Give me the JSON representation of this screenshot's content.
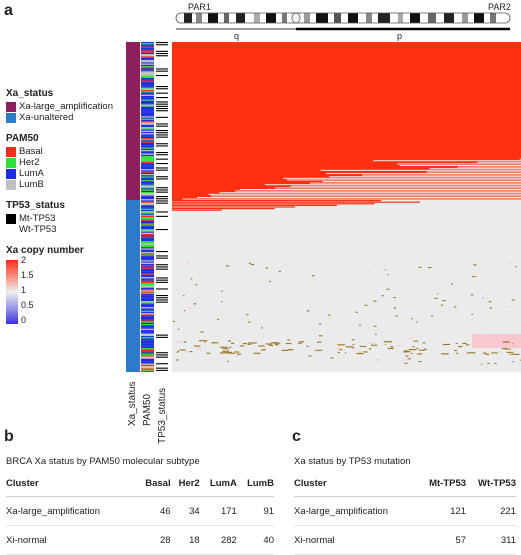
{
  "panel_a": {
    "label": "a",
    "chromosome": {
      "par1": "PAR1",
      "par2": "PAR2",
      "arm_q": "q",
      "arm_p": "p"
    },
    "legend": {
      "xa_status": {
        "title": "Xa_status",
        "items": [
          {
            "label": "Xa-large_amplification",
            "color": "#8e1f5c"
          },
          {
            "label": "Xa-unaltered",
            "color": "#2c7bca"
          }
        ]
      },
      "pam50": {
        "title": "PAM50",
        "items": [
          {
            "label": "Basal",
            "color": "#ff2a1a"
          },
          {
            "label": "Her2",
            "color": "#2fe03a"
          },
          {
            "label": "LumA",
            "color": "#1f2fe0"
          },
          {
            "label": "LumB",
            "color": "#c0c0c0"
          }
        ]
      },
      "tp53_status": {
        "title": "TP53_status",
        "items": [
          {
            "label": "Mt-TP53",
            "color": "#000000"
          },
          {
            "label": "Wt-TP53",
            "color": "#ffffff"
          }
        ]
      },
      "copy_number": {
        "title": "Xa copy number",
        "ticks": [
          "2",
          "1.5",
          "1",
          "0.5",
          "0"
        ],
        "colors": {
          "high": "#ff2a1a",
          "mid": "#eeeeee",
          "low": "#3a2fe0"
        }
      }
    },
    "annotation_labels": [
      "Xa_status",
      "PAM50",
      "TP53_status"
    ],
    "heatmap_colors": {
      "amplified": "#ff2f0f",
      "neutral": "#ebebeb",
      "loss_spot": "#a07a2a",
      "pink": "#f8c8d0"
    }
  },
  "panel_b": {
    "label": "b",
    "title": "BRCA Xa status by PAM50 molecular subtype",
    "columns": [
      "Cluster",
      "Basal",
      "Her2",
      "LumA",
      "LumB"
    ],
    "rows": [
      [
        "Xa-large_amplification",
        "46",
        "34",
        "171",
        "91"
      ],
      [
        "Xi-normal",
        "28",
        "18",
        "282",
        "40"
      ]
    ]
  },
  "panel_c": {
    "label": "c",
    "title": "Xa status by TP53 mutation",
    "columns": [
      "Cluster",
      "Mt-TP53",
      "Wt-TP53"
    ],
    "rows": [
      [
        "Xa-large_amplification",
        "121",
        "221"
      ],
      [
        "Xi-normal",
        "57",
        "311"
      ]
    ]
  }
}
